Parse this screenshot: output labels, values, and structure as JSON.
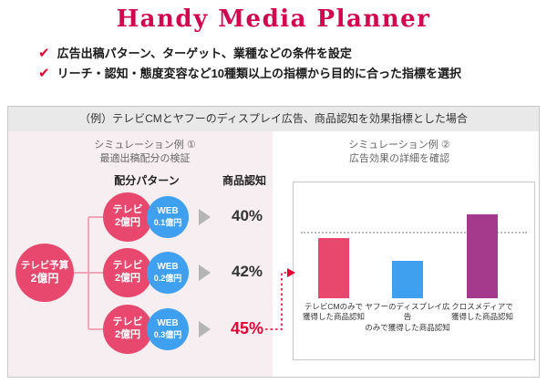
{
  "title": "Handy Media Planner",
  "features": [
    "広告出稿パターン、ターゲット、業種などの条件を設定",
    "リーチ・認知・態度変容など10種類以上の指標から目的に合った指標を選択"
  ],
  "example_box": {
    "header": "（例）テレビCMとヤフーのディスプレイ広告、商品認知を効果指標とした場合",
    "simulation1": {
      "label_line1": "シミュレーション例 ①",
      "label_line2": "最適出稿配分の検証",
      "column_pattern": "配分パターン",
      "column_result": "商品認知",
      "budget_line1": "テレビ予算",
      "budget_line2": "2億円",
      "rows": [
        {
          "tv_line1": "テレビ",
          "tv_line2": "2億円",
          "web_line1": "WEB",
          "web_line2": "0.1億円",
          "result": "40%"
        },
        {
          "tv_line1": "テレビ",
          "tv_line2": "2億円",
          "web_line1": "WEB",
          "web_line2": "0.2億円",
          "result": "42%"
        },
        {
          "tv_line1": "テレビ",
          "tv_line2": "2億円",
          "web_line1": "WEB",
          "web_line2": "0.3億円",
          "result": "45%"
        }
      ]
    },
    "simulation2": {
      "label_line1": "シミュレーション例 ②",
      "label_line2": "広告効果の詳細を確認"
    }
  },
  "chart_data": {
    "type": "bar",
    "categories": [
      "テレビCMのみで\n獲得した商品認知",
      "ヤフーのディスプレイ広告\nのみで獲得した商品認知",
      "クロスメディアで\n獲得した商品認知"
    ],
    "values": [
      40,
      25,
      56
    ],
    "bar_colors": [
      "#e8486e",
      "#3fa0f0",
      "#a53a8d"
    ],
    "reference_line_value": 43,
    "ylim": [
      0,
      60
    ],
    "title": "",
    "xlabel": "",
    "ylabel": "",
    "grid": false,
    "legend": false
  },
  "colors": {
    "title_red": "#d4034f",
    "accent_red": "#e60033",
    "pink_circle": "#e8486e",
    "blue_circle": "#3fa0f0",
    "purple_bar": "#a53a8d",
    "panel_pink": "#f7eef1",
    "header_gray": "#e9e9e9"
  }
}
